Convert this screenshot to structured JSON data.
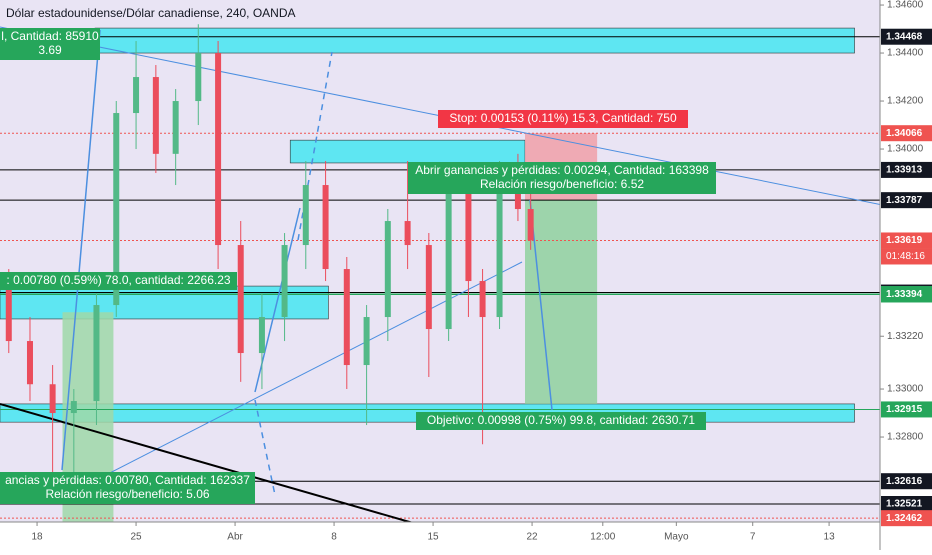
{
  "chart_data": {
    "type": "candlestick",
    "title": "Dólar estadounidense/Dólar canadiense, 240, OANDA",
    "xlim": [
      15.38,
      77.6
    ],
    "ylim": [
      1.32446,
      1.34621
    ],
    "xticks": [
      18,
      25,
      {
        "value": 32,
        "label": "Abr"
      },
      {
        "value": 39,
        "label": "8"
      },
      {
        "value": 46,
        "label": "15"
      },
      {
        "value": 53,
        "label": "22"
      },
      {
        "value": 58,
        "label": "12:00"
      },
      {
        "value": 63.2,
        "label": "Mayo"
      },
      {
        "value": 68.6,
        "label": "7"
      },
      {
        "value": 74,
        "label": "13"
      }
    ],
    "yticks": [
      {
        "value": 1.346,
        "label": "1.34600"
      },
      {
        "value": 1.344,
        "label": "1.34400"
      },
      {
        "value": 1.342,
        "label": "1.34200"
      },
      {
        "value": 1.34,
        "label": "1.34000"
      },
      {
        "value": 1.3322,
        "label": "1.33220"
      },
      {
        "value": 1.33,
        "label": "1.33000"
      },
      {
        "value": 1.328,
        "label": "1.32800"
      }
    ],
    "up_color": "#53b987",
    "down_color": "#eb4d5c",
    "x": [
      16.0,
      17.5,
      19.1,
      20.6,
      22.2,
      23.6,
      25.0,
      26.4,
      27.8,
      29.4,
      30.8,
      32.4,
      33.9,
      35.5,
      37.0,
      38.4,
      39.9,
      41.3,
      42.8,
      44.2,
      45.7,
      47.1,
      48.5,
      49.5,
      50.7,
      52.0,
      52.9
    ],
    "open": [
      1.3345,
      1.332,
      1.3302,
      1.329,
      1.3295,
      1.3335,
      1.3415,
      1.343,
      1.3398,
      1.342,
      1.344,
      1.336,
      1.3315,
      1.333,
      1.336,
      1.3385,
      1.335,
      1.331,
      1.333,
      1.337,
      1.336,
      1.3325,
      1.3385,
      1.3345,
      1.333,
      1.3385,
      1.3375
    ],
    "high": [
      1.335,
      1.333,
      1.331,
      1.33,
      1.334,
      1.342,
      1.3445,
      1.3435,
      1.3425,
      1.3452,
      1.3445,
      1.337,
      1.334,
      1.3365,
      1.3395,
      1.3395,
      1.3355,
      1.3335,
      1.3375,
      1.3395,
      1.3365,
      1.339,
      1.339,
      1.335,
      1.3395,
      1.3398,
      1.3382
    ],
    "low": [
      1.3315,
      1.3295,
      1.3262,
      1.3262,
      1.3285,
      1.333,
      1.34,
      1.339,
      1.3385,
      1.341,
      1.335,
      1.3303,
      1.33,
      1.332,
      1.335,
      1.3345,
      1.33,
      1.3285,
      1.332,
      1.335,
      1.3305,
      1.332,
      1.333,
      1.3277,
      1.3325,
      1.337,
      1.3358
    ],
    "close": [
      1.332,
      1.3302,
      1.329,
      1.3295,
      1.3335,
      1.3415,
      1.343,
      1.3398,
      1.342,
      1.344,
      1.336,
      1.3315,
      1.333,
      1.336,
      1.3385,
      1.335,
      1.331,
      1.333,
      1.337,
      1.336,
      1.3325,
      1.3385,
      1.3345,
      1.333,
      1.3385,
      1.3375,
      1.3362
    ],
    "zones": [
      {
        "x": [
          22.1,
          75.8
        ],
        "y": [
          1.344,
          1.34504
        ],
        "color": "#5ee6f2"
      },
      {
        "x": [
          35.9,
          52.5
        ],
        "y": [
          1.33942,
          1.34037
        ],
        "color": "#5ee6f2"
      },
      {
        "x": [
          15.38,
          38.6
        ],
        "y": [
          1.33292,
          1.33429
        ],
        "color": "#5ee6f2"
      },
      {
        "x": [
          15.38,
          75.8
        ],
        "y": [
          1.32862,
          1.32938
        ],
        "color": "#5ee6f2"
      },
      {
        "x": [
          52.5,
          57.6
        ],
        "y": [
          1.32938,
          1.33787
        ],
        "color": "#8fd19e"
      },
      {
        "x": [
          52.5,
          57.6
        ],
        "y": [
          1.33787,
          1.34066
        ],
        "color": "#f0a0a8"
      },
      {
        "x": [
          19.8,
          23.4
        ],
        "y": [
          1.32446,
          1.3332
        ],
        "color": "#9fd8a8"
      }
    ],
    "levels": [
      {
        "value": 1.34468,
        "color": "#000000",
        "label_color": "#131722"
      },
      {
        "value": 1.34066,
        "color": "#ef5350",
        "label_color": "#ef5350"
      },
      {
        "value": 1.33913,
        "color": "#000000",
        "label_color": "#131722"
      },
      {
        "value": 1.33787,
        "color": "#000000",
        "label_color": "#131722"
      },
      {
        "value": 1.33619,
        "color": "#ef5350",
        "label_color": "#ef5350"
      },
      {
        "value": 1.33402,
        "color": "#000000",
        "label_color": "#131722"
      },
      {
        "value": 1.33396,
        "color": "#26a65b",
        "label_color": "#26a65b"
      },
      {
        "value": 1.33394,
        "color": "#26a65b",
        "label_color": "#26a65b"
      },
      {
        "value": 1.32915,
        "color": "#26a65b",
        "label_color": "#26a65b"
      },
      {
        "value": 1.32616,
        "color": "#000000",
        "label_color": "#131722"
      },
      {
        "value": 1.32521,
        "color": "#000000",
        "label_color": "#131722"
      },
      {
        "value": 1.32462,
        "color": "#ef5350",
        "label_color": "#ef5350"
      }
    ],
    "countdown": "01:48:16",
    "annotations": [
      {
        "lines": [
          "l, Cantidad: 85910",
          "3.69"
        ],
        "color": "#26a65b"
      },
      {
        "lines": [
          "Stop: 0.00153 (0.11%) 15.3, Cantidad: 750"
        ],
        "color": "#f23645"
      },
      {
        "lines": [
          "Abrir ganancias y pérdidas: 0.00294, Cantidad: 163398",
          "Relación riesgo/beneficio: 6.52"
        ],
        "color": "#26a65b"
      },
      {
        "lines": [
          ": 0.00780 (0.59%) 78.0, cantidad: 2266.23"
        ],
        "color": "#26a65b"
      },
      {
        "lines": [
          "Objetivo: 0.00998 (0.75%) 99.8, cantidad: 2630.71"
        ],
        "color": "#26a65b"
      },
      {
        "lines": [
          "ancias y pérdidas: 0.00780, Cantidad: 162337",
          "Relación riesgo/beneficio: 5.06"
        ],
        "color": "#26a65b"
      }
    ]
  }
}
